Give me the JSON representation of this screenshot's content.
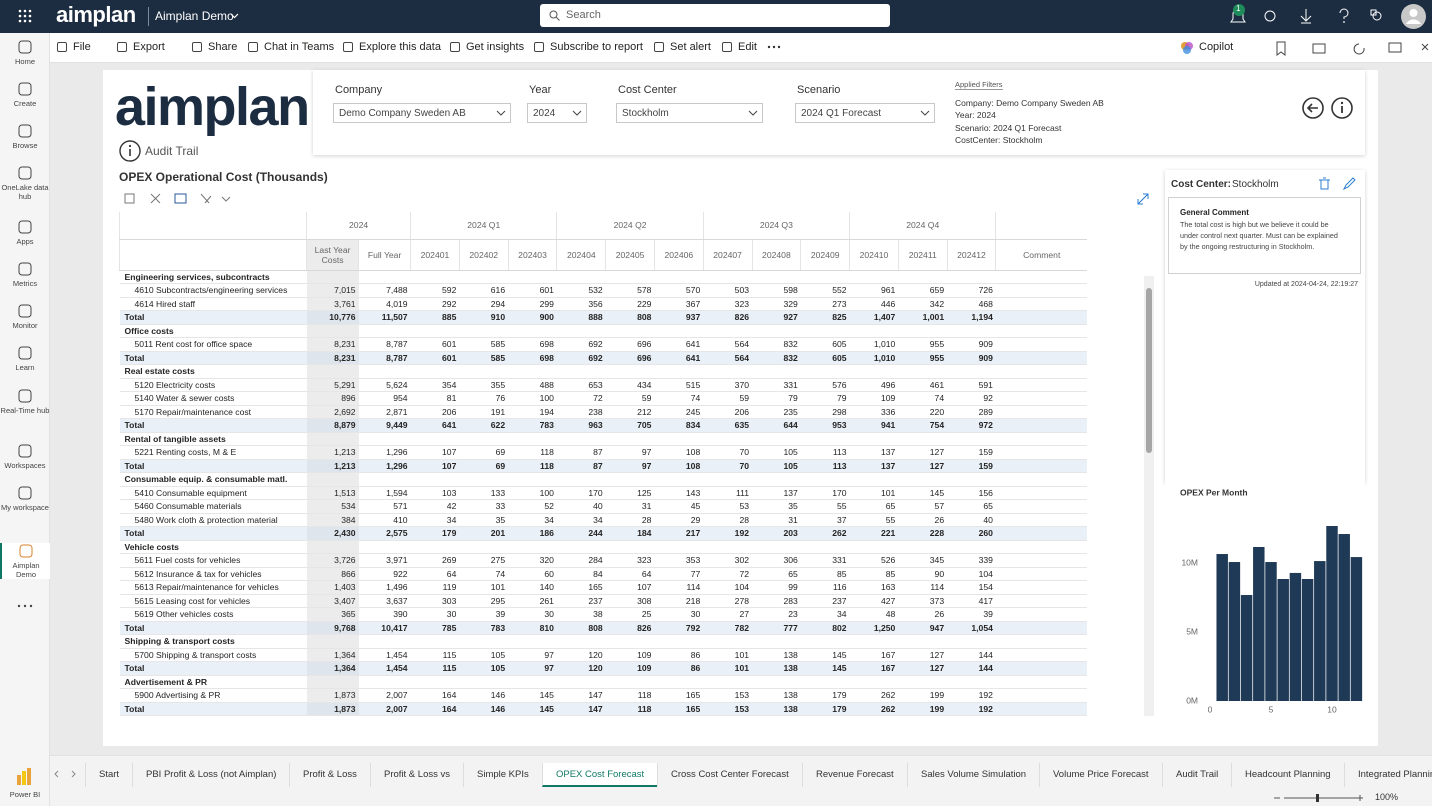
{
  "topbar": {
    "brand": "aimplan",
    "workspace": "Aimplan Demo",
    "search": "Search",
    "notification_count": "1"
  },
  "sidebar": [
    "Home",
    "Create",
    "Browse",
    "OneLake data hub",
    "Apps",
    "Metrics",
    "Monitor",
    "Learn",
    "Real-Time hub",
    "Workspaces",
    "My workspace",
    "Aimplan Demo"
  ],
  "sidebar_footer": "Power BI",
  "toolbar": {
    "left": [
      "File",
      "Export",
      "Share",
      "Chat in Teams",
      "Explore this data",
      "Get insights",
      "Subscribe to report",
      "Set alert",
      "Edit"
    ],
    "copilot": "Copilot"
  },
  "report": {
    "logo": "aimplan",
    "audit_trail": "Audit Trail",
    "filters": [
      {
        "label": "Company",
        "value": "Demo Company Sweden AB"
      },
      {
        "label": "Year",
        "value": "2024"
      },
      {
        "label": "Cost Center",
        "value": "Stockholm"
      },
      {
        "label": "Scenario",
        "value": "2024 Q1 Forecast"
      }
    ],
    "applied_filters": {
      "title": "Applied Filters",
      "lines": [
        "Company: Demo Company Sweden AB",
        "Year: 2024",
        "Scenario: 2024 Q1 Forecast",
        "CostCenter: Stockholm"
      ]
    },
    "table": {
      "title": "OPEX Operational Cost (Thousands)",
      "group_headers": [
        "2024",
        "2024 Q1",
        "2024 Q2",
        "2024 Q3",
        "2024 Q4"
      ],
      "columns": [
        "Last Year Costs",
        "Full Year",
        "202401",
        "202402",
        "202403",
        "202404",
        "202405",
        "202406",
        "202407",
        "202408",
        "202409",
        "202410",
        "202411",
        "202412",
        "Comment"
      ],
      "rows": [
        {
          "kind": "group",
          "label": "Engineering services, subcontracts",
          "values": []
        },
        {
          "kind": "item",
          "label": "4610 Subcontracts/engineering services",
          "values": [
            "7,015",
            "7,488",
            "592",
            "616",
            "601",
            "532",
            "578",
            "570",
            "503",
            "598",
            "552",
            "961",
            "659",
            "726"
          ]
        },
        {
          "kind": "item",
          "label": "4614 Hired staff",
          "values": [
            "3,761",
            "4,019",
            "292",
            "294",
            "299",
            "356",
            "229",
            "367",
            "323",
            "329",
            "273",
            "446",
            "342",
            "468"
          ]
        },
        {
          "kind": "total",
          "label": "Total",
          "values": [
            "10,776",
            "11,507",
            "885",
            "910",
            "900",
            "888",
            "808",
            "937",
            "826",
            "927",
            "825",
            "1,407",
            "1,001",
            "1,194"
          ]
        },
        {
          "kind": "group",
          "label": "Office costs",
          "values": []
        },
        {
          "kind": "item",
          "label": "5011 Rent cost for office space",
          "values": [
            "8,231",
            "8,787",
            "601",
            "585",
            "698",
            "692",
            "696",
            "641",
            "564",
            "832",
            "605",
            "1,010",
            "955",
            "909"
          ]
        },
        {
          "kind": "total",
          "label": "Total",
          "values": [
            "8,231",
            "8,787",
            "601",
            "585",
            "698",
            "692",
            "696",
            "641",
            "564",
            "832",
            "605",
            "1,010",
            "955",
            "909"
          ]
        },
        {
          "kind": "group",
          "label": "Real estate costs",
          "values": []
        },
        {
          "kind": "item",
          "label": "5120 Electricity costs",
          "values": [
            "5,291",
            "5,624",
            "354",
            "355",
            "488",
            "653",
            "434",
            "515",
            "370",
            "331",
            "576",
            "496",
            "461",
            "591"
          ]
        },
        {
          "kind": "item",
          "label": "5140 Water & sewer costs",
          "values": [
            "896",
            "954",
            "81",
            "76",
            "100",
            "72",
            "59",
            "74",
            "59",
            "79",
            "79",
            "109",
            "74",
            "92"
          ]
        },
        {
          "kind": "item",
          "label": "5170 Repair/maintenance cost",
          "values": [
            "2,692",
            "2,871",
            "206",
            "191",
            "194",
            "238",
            "212",
            "245",
            "206",
            "235",
            "298",
            "336",
            "220",
            "289"
          ]
        },
        {
          "kind": "total",
          "label": "Total",
          "values": [
            "8,879",
            "9,449",
            "641",
            "622",
            "783",
            "963",
            "705",
            "834",
            "635",
            "644",
            "953",
            "941",
            "754",
            "972"
          ]
        },
        {
          "kind": "group",
          "label": "Rental of tangible assets",
          "values": []
        },
        {
          "kind": "item",
          "label": "5221 Renting costs, M & E",
          "values": [
            "1,213",
            "1,296",
            "107",
            "69",
            "118",
            "87",
            "97",
            "108",
            "70",
            "105",
            "113",
            "137",
            "127",
            "159"
          ]
        },
        {
          "kind": "total",
          "label": "Total",
          "values": [
            "1,213",
            "1,296",
            "107",
            "69",
            "118",
            "87",
            "97",
            "108",
            "70",
            "105",
            "113",
            "137",
            "127",
            "159"
          ]
        },
        {
          "kind": "group",
          "label": "Consumable equip. & consumable matl.",
          "values": []
        },
        {
          "kind": "item",
          "label": "5410 Consumable equipment",
          "values": [
            "1,513",
            "1,594",
            "103",
            "133",
            "100",
            "170",
            "125",
            "143",
            "111",
            "137",
            "170",
            "101",
            "145",
            "156"
          ]
        },
        {
          "kind": "item",
          "label": "5460 Consumable materials",
          "values": [
            "534",
            "571",
            "42",
            "33",
            "52",
            "40",
            "31",
            "45",
            "53",
            "35",
            "55",
            "65",
            "57",
            "65"
          ]
        },
        {
          "kind": "item",
          "label": "5480 Work cloth & protection material",
          "values": [
            "384",
            "410",
            "34",
            "35",
            "34",
            "34",
            "28",
            "29",
            "28",
            "31",
            "37",
            "55",
            "26",
            "40"
          ]
        },
        {
          "kind": "total",
          "label": "Total",
          "values": [
            "2,430",
            "2,575",
            "179",
            "201",
            "186",
            "244",
            "184",
            "217",
            "192",
            "203",
            "262",
            "221",
            "228",
            "260"
          ]
        },
        {
          "kind": "group",
          "label": "Vehicle costs",
          "values": []
        },
        {
          "kind": "item",
          "label": "5611 Fuel costs for vehicles",
          "values": [
            "3,726",
            "3,971",
            "269",
            "275",
            "320",
            "284",
            "323",
            "353",
            "302",
            "306",
            "331",
            "526",
            "345",
            "339"
          ]
        },
        {
          "kind": "item",
          "label": "5612 Insurance & tax for vehicles",
          "values": [
            "866",
            "922",
            "64",
            "74",
            "60",
            "84",
            "64",
            "77",
            "72",
            "65",
            "85",
            "85",
            "90",
            "104"
          ]
        },
        {
          "kind": "item",
          "label": "5613 Repair/maintenance for vehicles",
          "values": [
            "1,403",
            "1,496",
            "119",
            "101",
            "140",
            "165",
            "107",
            "114",
            "104",
            "99",
            "116",
            "163",
            "114",
            "154"
          ]
        },
        {
          "kind": "item",
          "label": "5615 Leasing cost for vehicles",
          "values": [
            "3,407",
            "3,637",
            "303",
            "295",
            "261",
            "237",
            "308",
            "218",
            "278",
            "283",
            "237",
            "427",
            "373",
            "417"
          ]
        },
        {
          "kind": "item",
          "label": "5619 Other vehicles costs",
          "values": [
            "365",
            "390",
            "30",
            "39",
            "30",
            "38",
            "25",
            "30",
            "27",
            "23",
            "34",
            "48",
            "26",
            "39"
          ]
        },
        {
          "kind": "total",
          "label": "Total",
          "values": [
            "9,768",
            "10,417",
            "785",
            "783",
            "810",
            "808",
            "826",
            "792",
            "782",
            "777",
            "802",
            "1,250",
            "947",
            "1,054"
          ]
        },
        {
          "kind": "group",
          "label": "Shipping & transport costs",
          "values": []
        },
        {
          "kind": "item",
          "label": "5700 Shipping & transport costs",
          "values": [
            "1,364",
            "1,454",
            "115",
            "105",
            "97",
            "120",
            "109",
            "86",
            "101",
            "138",
            "145",
            "167",
            "127",
            "144"
          ]
        },
        {
          "kind": "total",
          "label": "Total",
          "values": [
            "1,364",
            "1,454",
            "115",
            "105",
            "97",
            "120",
            "109",
            "86",
            "101",
            "138",
            "145",
            "167",
            "127",
            "144"
          ]
        },
        {
          "kind": "group",
          "label": "Advertisement & PR",
          "values": []
        },
        {
          "kind": "item",
          "label": "5900 Advertising & PR",
          "values": [
            "1,873",
            "2,007",
            "164",
            "146",
            "145",
            "147",
            "118",
            "165",
            "153",
            "138",
            "179",
            "262",
            "199",
            "192"
          ]
        },
        {
          "kind": "total",
          "label": "Total",
          "values": [
            "1,873",
            "2,007",
            "164",
            "146",
            "145",
            "147",
            "118",
            "165",
            "153",
            "138",
            "179",
            "262",
            "199",
            "192"
          ]
        }
      ]
    },
    "comment_panel": {
      "label": "Cost Center:",
      "cost_center": "Stockholm",
      "heading": "General Comment",
      "text": "The total cost is high but we believe it could be under control next quarter. Must can be explained by the ongoing restructuring in Stockholm.",
      "updated": "Updated at 2024-04-24, 22:19:27"
    }
  },
  "chart_data": {
    "type": "bar",
    "title": "OPEX Per Month",
    "x": [
      1,
      2,
      3,
      4,
      5,
      6,
      7,
      8,
      9,
      10,
      11,
      12
    ],
    "values": [
      10.65,
      10.07,
      7.68,
      11.16,
      10.07,
      8.84,
      9.28,
      8.84,
      10.14,
      12.68,
      12.1,
      10.43
    ],
    "color": "#1f3a57",
    "xlim": [
      0,
      12.5
    ],
    "ylim": [
      0,
      13
    ],
    "xticks": [
      0,
      5,
      10
    ],
    "yticks": [
      {
        "value": 0,
        "label": "0M"
      },
      {
        "value": 5,
        "label": "5M"
      },
      {
        "value": 10,
        "label": "10M"
      }
    ],
    "grid": false
  },
  "tabs": [
    "Start",
    "PBI Profit & Loss (not Aimplan)",
    "Profit & Loss",
    "Profit & Loss vs",
    "Simple KPIs",
    "OPEX Cost Forecast",
    "Cross Cost Center Forecast",
    "Revenue Forecast",
    "Sales Volume Simulation",
    "Volume Price Forecast",
    "Audit Trail",
    "Headcount Planning",
    "Integrated Planning"
  ],
  "active_tab": 5,
  "status": {
    "zoom": "100%"
  }
}
